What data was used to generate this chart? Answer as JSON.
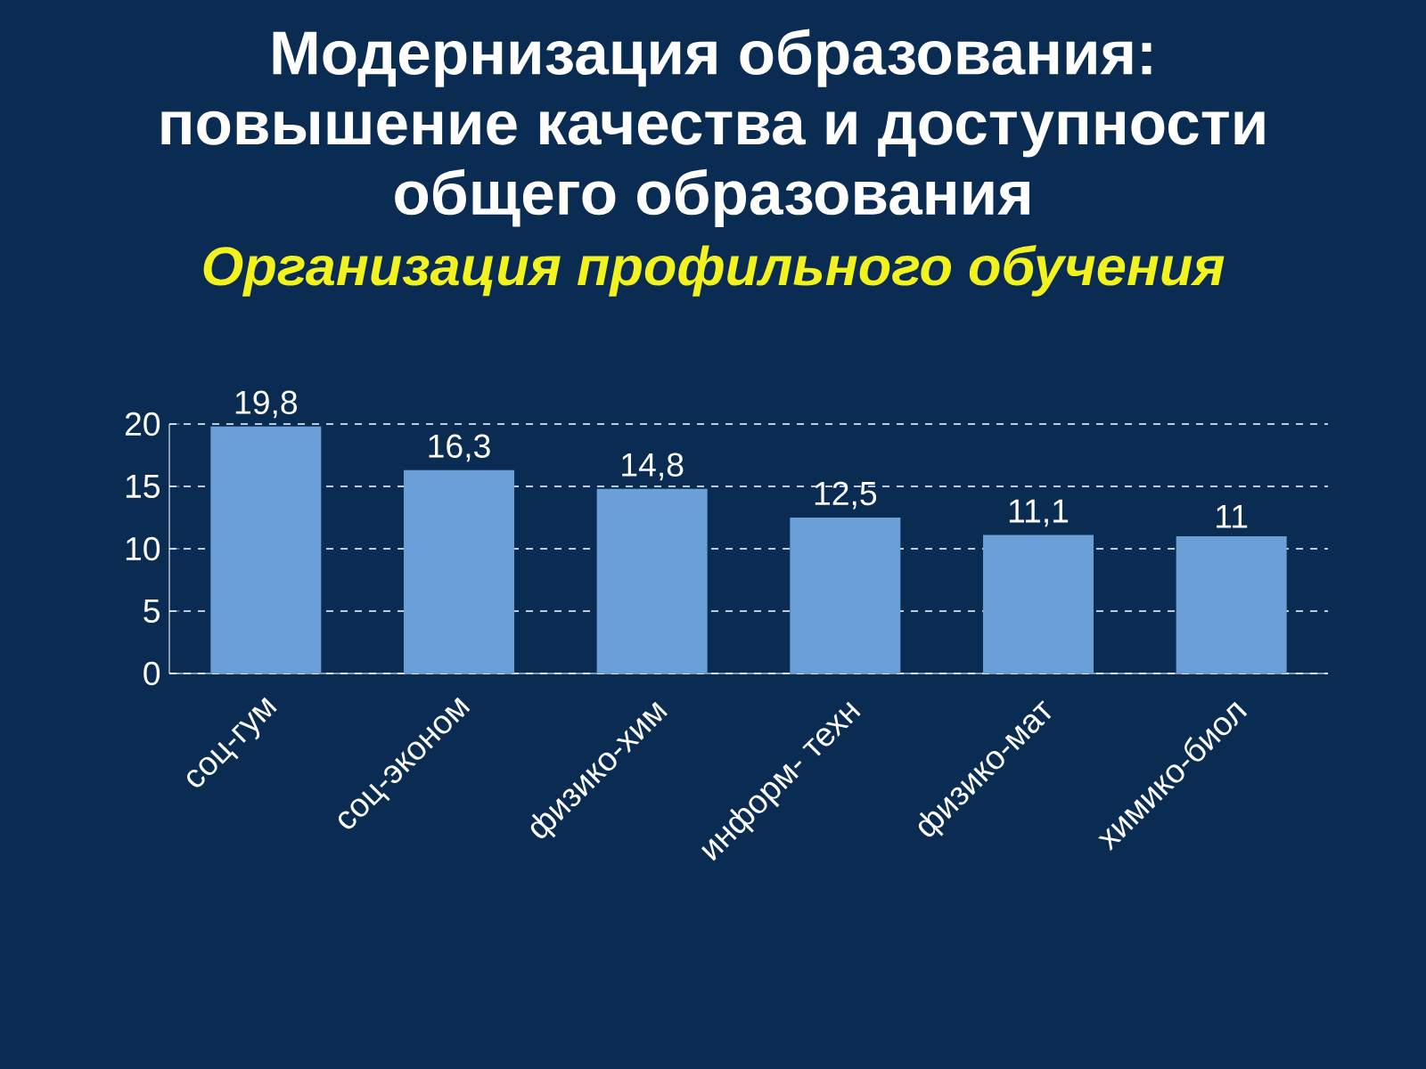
{
  "chart_data": {
    "type": "bar",
    "title": "Модернизация образования: повышение качества и доступности общего образования",
    "subtitle": "Организация профильного обучения",
    "categories": [
      "соц-гум",
      "соц-эконом",
      "физико-хим",
      "информ- техн",
      "физико-мат",
      "химико-биол"
    ],
    "values": [
      19.8,
      16.3,
      14.8,
      12.5,
      11.1,
      11
    ],
    "value_labels": [
      "19,8",
      "16,3",
      "14,8",
      "12,5",
      "11,1",
      "11"
    ],
    "color": "#6a9fd8",
    "ylim": [
      0,
      20
    ],
    "yticks": [
      0,
      5,
      10,
      15,
      20
    ],
    "grid": "y"
  }
}
